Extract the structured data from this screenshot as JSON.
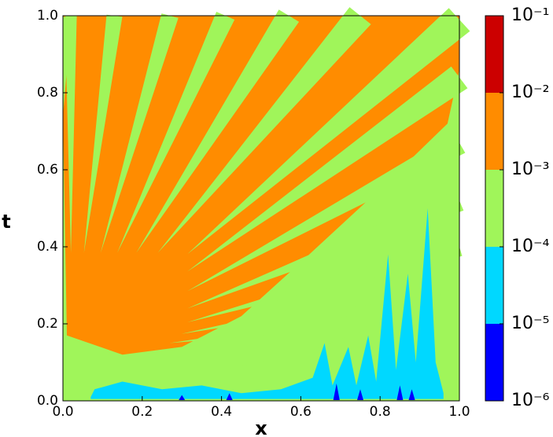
{
  "chart_data": {
    "type": "contour",
    "xlabel": "x",
    "ylabel": "t",
    "xlim": [
      0,
      1
    ],
    "ylim": [
      0,
      1
    ],
    "xticks": [
      {
        "value": 0,
        "label": "0.0"
      },
      {
        "value": 0.2,
        "label": "0.2"
      },
      {
        "value": 0.4,
        "label": "0.4"
      },
      {
        "value": 0.6,
        "label": "0.6"
      },
      {
        "value": 0.8,
        "label": "0.8"
      },
      {
        "value": 1,
        "label": "1.0"
      }
    ],
    "yticks": [
      {
        "value": 0,
        "label": "0.0"
      },
      {
        "value": 0.2,
        "label": "0.2"
      },
      {
        "value": 0.4,
        "label": "0.4"
      },
      {
        "value": 0.6,
        "label": "0.6"
      },
      {
        "value": 0.8,
        "label": "0.8"
      },
      {
        "value": 1,
        "label": "1.0"
      }
    ],
    "levels": [
      {
        "value": 1e-06,
        "label": "10⁻⁶"
      },
      {
        "value": 1e-05,
        "label": "10⁻⁵"
      },
      {
        "value": 0.0001,
        "label": "10⁻⁴"
      },
      {
        "value": 0.001,
        "label": "10⁻³"
      },
      {
        "value": 0.01,
        "label": "10⁻²"
      },
      {
        "value": 0.1,
        "label": "10⁻¹"
      }
    ],
    "colors": [
      "#0000ff",
      "#00d8ff",
      "#a0f55a",
      "#ff8c00",
      "#cc0000"
    ],
    "colorbar_log": true
  }
}
